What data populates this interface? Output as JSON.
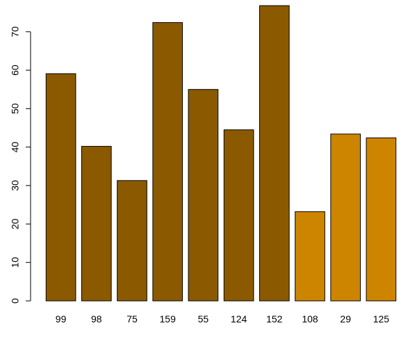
{
  "chart_data": {
    "type": "bar",
    "title": "",
    "xlabel": "",
    "ylabel": "",
    "categories": [
      "99",
      "98",
      "75",
      "159",
      "55",
      "124",
      "152",
      "108",
      "29",
      "125"
    ],
    "values": [
      59.1,
      40.2,
      31.3,
      72.4,
      55.0,
      44.5,
      76.8,
      23.2,
      43.4,
      42.4
    ],
    "groups": [
      "a",
      "a",
      "a",
      "a",
      "a",
      "a",
      "a",
      "b",
      "b",
      "b"
    ],
    "colors": {
      "a": "#8B5A00",
      "b": "#CD8500"
    },
    "ylim": [
      0,
      77
    ],
    "yticks": [
      0,
      10,
      20,
      30,
      40,
      50,
      60,
      70
    ],
    "grid": false,
    "legend": "none"
  }
}
